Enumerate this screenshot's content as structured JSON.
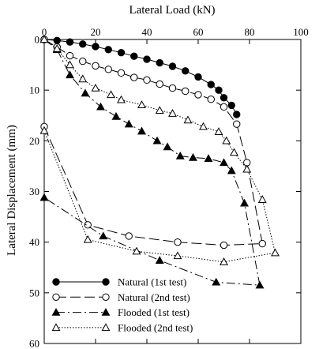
{
  "chart_data": {
    "type": "line",
    "title": "",
    "xlabel": "Lateral Load (kN)",
    "ylabel": "Lateral Displacement (mm)",
    "x_axis_position": "top",
    "y_axis_inverted": true,
    "xlim": [
      0,
      100
    ],
    "ylim": [
      0,
      60
    ],
    "x_ticks": [
      0,
      20,
      40,
      60,
      80,
      100
    ],
    "y_ticks": [
      0,
      10,
      20,
      30,
      40,
      50,
      60
    ],
    "x_tick_labels": [
      "0",
      "20",
      "40",
      "60",
      "80",
      "100"
    ],
    "y_tick_labels": [
      "0",
      "10",
      "20",
      "30",
      "40",
      "50",
      "60"
    ],
    "grid": false,
    "legend_position": "bottom-left",
    "series": [
      {
        "name": "Natural (1st test)",
        "marker": "filled-circle",
        "line_style": "solid",
        "points": [
          [
            0,
            0
          ],
          [
            5,
            0.2
          ],
          [
            10,
            0.5
          ],
          [
            15,
            0.9
          ],
          [
            20,
            1.4
          ],
          [
            25,
            2.0
          ],
          [
            30,
            2.6
          ],
          [
            35,
            3.3
          ],
          [
            40,
            3.9
          ],
          [
            45,
            4.6
          ],
          [
            50,
            5.3
          ],
          [
            55,
            6.2
          ],
          [
            60,
            7.4
          ],
          [
            65,
            8.9
          ],
          [
            68,
            10.0
          ],
          [
            70,
            11.5
          ],
          [
            73,
            13.0
          ],
          [
            75,
            14.8
          ]
        ]
      },
      {
        "name": "Natural (2nd test)",
        "marker": "open-circle",
        "line_style": "long-dash",
        "points": [
          [
            0,
            0
          ],
          [
            5,
            1.5
          ],
          [
            10,
            3.2
          ],
          [
            15,
            4.3
          ],
          [
            20,
            5.2
          ],
          [
            25,
            5.9
          ],
          [
            30,
            6.6
          ],
          [
            35,
            7.5
          ],
          [
            40,
            8.0
          ],
          [
            45,
            8.8
          ],
          [
            50,
            9.6
          ],
          [
            55,
            10.2
          ],
          [
            60,
            10.9
          ],
          [
            65,
            11.8
          ],
          [
            70,
            13.3
          ],
          [
            75,
            16.7
          ],
          [
            79,
            24.3
          ],
          [
            85,
            40.3
          ],
          [
            70,
            40.6
          ],
          [
            52,
            40.0
          ],
          [
            33,
            38.8
          ],
          [
            17,
            36.6
          ],
          [
            0,
            17.2
          ]
        ]
      },
      {
        "name": "Flooded (1st test)",
        "marker": "filled-triangle",
        "line_style": "dash-dot",
        "points": [
          [
            0,
            0
          ],
          [
            5,
            2.0
          ],
          [
            10,
            7.0
          ],
          [
            16,
            10.6
          ],
          [
            22,
            13.3
          ],
          [
            28,
            15.2
          ],
          [
            33,
            16.7
          ],
          [
            38,
            18.1
          ],
          [
            44,
            20.0
          ],
          [
            48,
            21.2
          ],
          [
            53,
            23.0
          ],
          [
            58,
            23.3
          ],
          [
            64,
            23.5
          ],
          [
            70,
            24.3
          ],
          [
            73,
            25.9
          ],
          [
            78,
            32.3
          ],
          [
            84,
            48.5
          ],
          [
            67,
            47.9
          ],
          [
            45,
            43.6
          ],
          [
            23,
            38.8
          ],
          [
            0,
            31.2
          ]
        ]
      },
      {
        "name": "Flooded (2nd test)",
        "marker": "open-triangle",
        "line_style": "dotted",
        "points": [
          [
            0,
            0
          ],
          [
            5,
            1.8
          ],
          [
            10,
            5.0
          ],
          [
            15,
            7.8
          ],
          [
            20,
            9.6
          ],
          [
            26,
            10.9
          ],
          [
            30,
            11.9
          ],
          [
            38,
            12.9
          ],
          [
            45,
            14.0
          ],
          [
            50,
            14.6
          ],
          [
            56,
            15.9
          ],
          [
            62,
            17.2
          ],
          [
            68,
            18.2
          ],
          [
            71,
            20.0
          ],
          [
            74,
            22.3
          ],
          [
            79,
            25.6
          ],
          [
            85,
            31.6
          ],
          [
            90,
            42.1
          ],
          [
            70,
            43.9
          ],
          [
            52,
            42.7
          ],
          [
            36,
            41.8
          ],
          [
            17,
            39.5
          ],
          [
            0,
            18.0
          ]
        ]
      }
    ]
  }
}
